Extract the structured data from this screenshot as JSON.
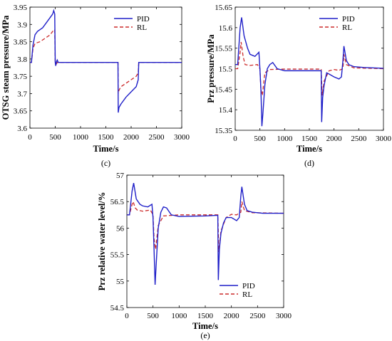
{
  "colors": {
    "pid": "#1f1fc8",
    "rl": "#cc2a2a"
  },
  "chart_data": [
    {
      "type": "line",
      "panel_label": "(c)",
      "xlabel": "Time/s",
      "ylabel": "OTSG steam pressure/MPa",
      "xlim": [
        0,
        3000
      ],
      "ylim": [
        3.6,
        3.95
      ],
      "xticks": [
        "0",
        "500",
        "1000",
        "1500",
        "2000",
        "2500",
        "3000"
      ],
      "yticks": [
        "3.6",
        "3.65",
        "3.7",
        "3.75",
        "3.8",
        "3.85",
        "3.9",
        "3.95"
      ],
      "legend": {
        "position": "top-right",
        "entries": [
          "PID",
          "RL"
        ]
      },
      "series": [
        {
          "name": "PID",
          "style": "solid",
          "x": [
            0,
            30,
            60,
            100,
            150,
            200,
            250,
            300,
            350,
            400,
            450,
            470,
            490,
            500,
            510,
            520,
            540,
            560,
            600,
            1000,
            1500,
            1740,
            1745,
            1760,
            1800,
            1900,
            2000,
            2100,
            2140,
            2150,
            2200,
            2500,
            3000
          ],
          "y": [
            3.79,
            3.79,
            3.84,
            3.87,
            3.88,
            3.885,
            3.89,
            3.9,
            3.91,
            3.92,
            3.93,
            3.94,
            3.93,
            3.79,
            3.78,
            3.79,
            3.797,
            3.79,
            3.79,
            3.79,
            3.79,
            3.79,
            3.645,
            3.66,
            3.67,
            3.69,
            3.705,
            3.72,
            3.74,
            3.79,
            3.79,
            3.79,
            3.79
          ]
        },
        {
          "name": "RL",
          "style": "dashed",
          "x": [
            0,
            30,
            60,
            100,
            200,
            300,
            400,
            450,
            490,
            500,
            520,
            540,
            600,
            1000,
            1500,
            1740,
            1745,
            1760,
            1800,
            1900,
            2000,
            2100,
            2140,
            2150,
            2200,
            2500,
            3000
          ],
          "y": [
            3.79,
            3.79,
            3.83,
            3.845,
            3.85,
            3.86,
            3.87,
            3.88,
            3.885,
            3.79,
            3.785,
            3.79,
            3.79,
            3.79,
            3.79,
            3.79,
            3.7,
            3.71,
            3.72,
            3.73,
            3.74,
            3.75,
            3.76,
            3.79,
            3.79,
            3.79,
            3.79
          ]
        }
      ]
    },
    {
      "type": "line",
      "panel_label": "(d)",
      "xlabel": "Time/s",
      "ylabel": "Prz pressure/MPa",
      "xlim": [
        0,
        3000
      ],
      "ylim": [
        15.35,
        15.65
      ],
      "xticks": [
        "0",
        "500",
        "1000",
        "1500",
        "2000",
        "2500",
        "3000"
      ],
      "yticks": [
        "15.35",
        "15.4",
        "15.45",
        "15.5",
        "15.55",
        "15.6",
        "15.65"
      ],
      "legend": {
        "position": "top-right",
        "entries": [
          "PID",
          "RL"
        ]
      },
      "series": [
        {
          "name": "PID",
          "style": "solid",
          "x": [
            0,
            50,
            100,
            130,
            180,
            250,
            300,
            400,
            480,
            500,
            520,
            540,
            560,
            600,
            650,
            700,
            760,
            850,
            1000,
            1500,
            1700,
            1740,
            1750,
            1770,
            1800,
            1850,
            1900,
            2000,
            2100,
            2150,
            2180,
            2200,
            2250,
            2300,
            2400,
            2600,
            3000
          ],
          "y": [
            15.51,
            15.51,
            15.6,
            15.625,
            15.58,
            15.55,
            15.535,
            15.53,
            15.54,
            15.5,
            15.45,
            15.36,
            15.39,
            15.46,
            15.5,
            15.51,
            15.515,
            15.5,
            15.495,
            15.495,
            15.495,
            15.495,
            15.37,
            15.43,
            15.46,
            15.49,
            15.487,
            15.48,
            15.475,
            15.48,
            15.52,
            15.555,
            15.52,
            15.51,
            15.505,
            15.503,
            15.501
          ]
        },
        {
          "name": "RL",
          "style": "dashed",
          "x": [
            0,
            50,
            100,
            120,
            160,
            200,
            300,
            450,
            500,
            520,
            550,
            600,
            700,
            1000,
            1500,
            1740,
            1760,
            1800,
            1900,
            2000,
            2100,
            2180,
            2200,
            2250,
            2400,
            3000
          ],
          "y": [
            15.5,
            15.5,
            15.54,
            15.565,
            15.53,
            15.51,
            15.508,
            15.51,
            15.5,
            15.45,
            15.435,
            15.49,
            15.498,
            15.499,
            15.499,
            15.499,
            15.435,
            15.47,
            15.495,
            15.498,
            15.496,
            15.5,
            15.535,
            15.51,
            15.502,
            15.5
          ]
        }
      ]
    },
    {
      "type": "line",
      "panel_label": "(e)",
      "xlabel": "Time/s",
      "ylabel": "Prz relative water level/%",
      "xlim": [
        0,
        3000
      ],
      "ylim": [
        54.5,
        57
      ],
      "xticks": [
        "0",
        "500",
        "1000",
        "1500",
        "2000",
        "2500",
        "3000"
      ],
      "yticks": [
        "54.5",
        "55",
        "55.5",
        "56",
        "56.5",
        "57"
      ],
      "legend": {
        "position": "bottom-right",
        "entries": [
          "PID",
          "RL"
        ]
      },
      "series": [
        {
          "name": "PID",
          "style": "solid",
          "x": [
            0,
            50,
            100,
            130,
            180,
            250,
            300,
            400,
            480,
            500,
            520,
            540,
            560,
            600,
            650,
            700,
            760,
            850,
            1000,
            1500,
            1700,
            1740,
            1750,
            1770,
            1800,
            1850,
            1900,
            2000,
            2100,
            2150,
            2180,
            2200,
            2250,
            2300,
            2400,
            2600,
            3000
          ],
          "y": [
            56.25,
            56.25,
            56.7,
            56.85,
            56.55,
            56.45,
            56.42,
            56.4,
            56.45,
            56.2,
            55.6,
            54.93,
            55.3,
            56.0,
            56.3,
            56.4,
            56.38,
            56.25,
            56.22,
            56.23,
            56.24,
            56.24,
            55.02,
            55.6,
            55.9,
            56.1,
            56.2,
            56.2,
            56.14,
            56.2,
            56.6,
            56.78,
            56.45,
            56.33,
            56.3,
            56.28,
            56.28
          ]
        },
        {
          "name": "RL",
          "style": "dashed",
          "x": [
            0,
            50,
            100,
            120,
            160,
            200,
            300,
            450,
            500,
            520,
            550,
            600,
            700,
            1000,
            1500,
            1740,
            1760,
            1800,
            1900,
            2000,
            2100,
            2180,
            2200,
            2250,
            2400,
            3000
          ],
          "y": [
            56.25,
            56.25,
            56.45,
            56.5,
            56.38,
            56.34,
            56.32,
            56.34,
            56.25,
            55.8,
            55.6,
            56.05,
            56.23,
            56.25,
            56.25,
            56.25,
            55.55,
            55.95,
            56.2,
            56.26,
            56.25,
            56.3,
            56.5,
            56.33,
            56.29,
            56.28
          ]
        }
      ]
    }
  ]
}
